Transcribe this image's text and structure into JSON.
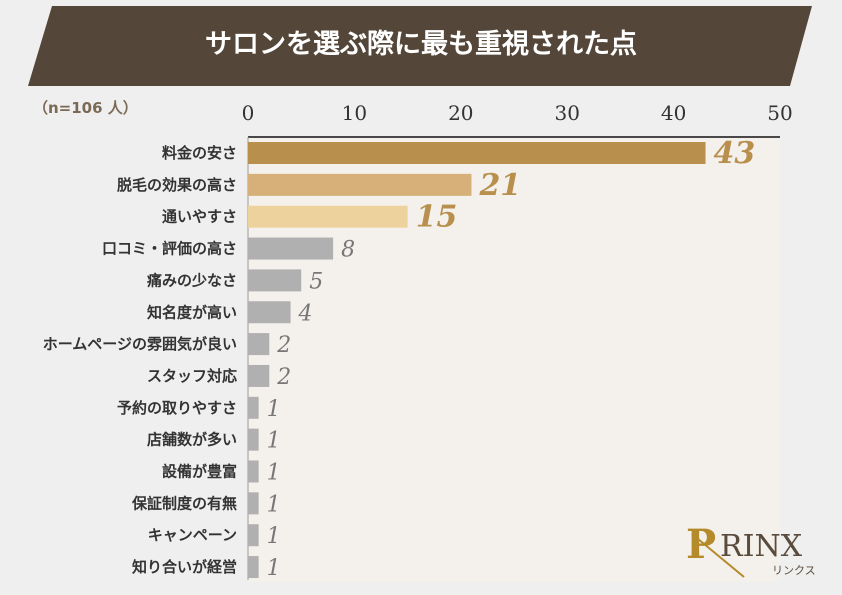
{
  "title": "サロンを選ぶ際に最も重視された点",
  "sample": "（n=106 人）",
  "logo": {
    "text": "RINX",
    "sub": "リンクス",
    "letter": "P"
  },
  "chart_data": {
    "type": "bar",
    "orientation": "horizontal",
    "title": "サロンを選ぶ際に最も重視された点",
    "xlim": [
      0,
      50
    ],
    "xticks": [
      0,
      10,
      20,
      30,
      40,
      50
    ],
    "xtick_position": "top",
    "categories": [
      "料金の安さ",
      "脱毛の効果の高さ",
      "通いやすさ",
      "口コミ・評価の高さ",
      "痛みの少なさ",
      "知名度が高い",
      "ホームページの雰囲気が良い",
      "スタッフ対応",
      "予約の取りやすさ",
      "店舗数が多い",
      "設備が豊富",
      "保証制度の有無",
      "キャンペーン",
      "知り合いが経営"
    ],
    "values": [
      43,
      21,
      15,
      8,
      5,
      4,
      2,
      2,
      1,
      1,
      1,
      1,
      1,
      1
    ],
    "colors": [
      "#b98f4e",
      "#d6b078",
      "#edd29d",
      "#b0b0b0",
      "#b0b0b0",
      "#b0b0b0",
      "#b0b0b0",
      "#b0b0b0",
      "#b0b0b0",
      "#b0b0b0",
      "#b0b0b0",
      "#b0b0b0",
      "#b0b0b0",
      "#b0b0b0"
    ],
    "label_colors": [
      "#b98f4e",
      "#b98f4e",
      "#b98f4e",
      "#777777",
      "#777777",
      "#777777",
      "#777777",
      "#777777",
      "#777777",
      "#777777",
      "#777777",
      "#777777",
      "#777777",
      "#777777"
    ],
    "grid": false
  }
}
